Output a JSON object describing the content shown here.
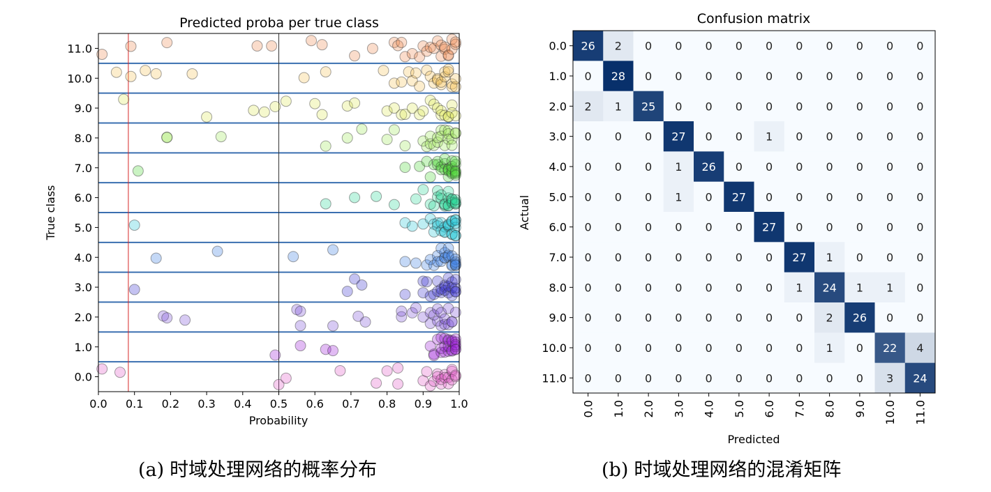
{
  "figure_captions": {
    "a_tag": "(a)",
    "a_text": "时域处理网络的概率分布",
    "b_tag": "(b)",
    "b_text": "时域处理网络的混淆矩阵"
  },
  "chart_data": [
    {
      "type": "scatter",
      "title": "Predicted proba per true class",
      "xlabel": "Probability",
      "ylabel": "True class",
      "xlim": [
        0.0,
        1.0
      ],
      "ylim": [
        -0.5,
        11.5
      ],
      "xticks": [
        "0.0",
        "0.1",
        "0.2",
        "0.3",
        "0.4",
        "0.5",
        "0.6",
        "0.7",
        "0.8",
        "0.9",
        "1.0"
      ],
      "yticks": [
        "0.0",
        "1.0",
        "2.0",
        "3.0",
        "4.0",
        "5.0",
        "6.0",
        "7.0",
        "8.0",
        "9.0",
        "10.0",
        "11.0"
      ],
      "vertical_lines": [
        {
          "x": 0.083,
          "color": "#d62728"
        },
        {
          "x": 0.5,
          "color": "#333333"
        }
      ],
      "class_separators": [
        0.5,
        1.5,
        2.5,
        3.5,
        4.5,
        5.5,
        6.5,
        7.5,
        8.5,
        9.5,
        10.5
      ],
      "grid": false,
      "point_style": "semi-transparent circles colored per class, dark edge",
      "series": [
        {
          "class": 0,
          "color": "#e05ac8",
          "x": [
            0.01,
            0.06,
            0.5,
            0.52,
            0.67,
            0.77,
            0.8,
            0.83,
            0.83,
            0.9,
            0.91,
            0.92,
            0.93,
            0.94,
            0.94,
            0.95,
            0.95,
            0.96,
            0.96,
            0.97,
            0.97,
            0.98,
            0.98,
            0.98,
            0.99,
            0.99
          ]
        },
        {
          "class": 1,
          "color": "#9b1fd6",
          "x": [
            0.49,
            0.56,
            0.63,
            0.65,
            0.92,
            0.93,
            0.93,
            0.94,
            0.95,
            0.95,
            0.95,
            0.96,
            0.96,
            0.96,
            0.97,
            0.97,
            0.97,
            0.97,
            0.98,
            0.98,
            0.98,
            0.98,
            0.99,
            0.99,
            0.99,
            0.99,
            0.99,
            0.99
          ]
        },
        {
          "class": 2,
          "color": "#7a50d8",
          "x": [
            0.18,
            0.19,
            0.24,
            0.55,
            0.56,
            0.56,
            0.65,
            0.72,
            0.74,
            0.84,
            0.84,
            0.87,
            0.88,
            0.9,
            0.92,
            0.92,
            0.93,
            0.94,
            0.94,
            0.95,
            0.95,
            0.96,
            0.96,
            0.97,
            0.97,
            0.98,
            0.98,
            0.99
          ]
        },
        {
          "class": 3,
          "color": "#3a35d0",
          "x": [
            0.1,
            0.69,
            0.71,
            0.73,
            0.85,
            0.9,
            0.9,
            0.91,
            0.92,
            0.93,
            0.94,
            0.94,
            0.95,
            0.95,
            0.96,
            0.96,
            0.96,
            0.97,
            0.97,
            0.97,
            0.98,
            0.98,
            0.98,
            0.99,
            0.99,
            0.99,
            0.99
          ]
        },
        {
          "class": 4,
          "color": "#3d7de0",
          "x": [
            0.16,
            0.33,
            0.54,
            0.65,
            0.85,
            0.88,
            0.91,
            0.92,
            0.93,
            0.94,
            0.94,
            0.95,
            0.95,
            0.96,
            0.96,
            0.96,
            0.97,
            0.97,
            0.97,
            0.98,
            0.98,
            0.98,
            0.99,
            0.99,
            0.99,
            0.99,
            0.99
          ]
        },
        {
          "class": 5,
          "color": "#27c8d8",
          "x": [
            0.1,
            0.85,
            0.87,
            0.9,
            0.92,
            0.93,
            0.93,
            0.94,
            0.94,
            0.95,
            0.95,
            0.96,
            0.96,
            0.96,
            0.97,
            0.97,
            0.97,
            0.98,
            0.98,
            0.98,
            0.98,
            0.99,
            0.99,
            0.99,
            0.99,
            0.99,
            0.99
          ]
        },
        {
          "class": 6,
          "color": "#2ad898",
          "x": [
            0.63,
            0.71,
            0.77,
            0.82,
            0.88,
            0.9,
            0.92,
            0.93,
            0.94,
            0.94,
            0.95,
            0.95,
            0.96,
            0.96,
            0.96,
            0.97,
            0.97,
            0.97,
            0.97,
            0.98,
            0.98,
            0.98,
            0.98,
            0.99,
            0.99,
            0.99,
            0.99
          ]
        },
        {
          "class": 7,
          "color": "#4ed838",
          "x": [
            0.11,
            0.85,
            0.89,
            0.91,
            0.92,
            0.93,
            0.94,
            0.94,
            0.95,
            0.95,
            0.96,
            0.96,
            0.96,
            0.97,
            0.97,
            0.97,
            0.97,
            0.98,
            0.98,
            0.98,
            0.98,
            0.98,
            0.99,
            0.99,
            0.99,
            0.99,
            0.99,
            0.99
          ]
        },
        {
          "class": 8,
          "color": "#9ee858",
          "x": [
            0.19,
            0.19,
            0.34,
            0.63,
            0.69,
            0.73,
            0.8,
            0.82,
            0.85,
            0.9,
            0.91,
            0.92,
            0.92,
            0.93,
            0.94,
            0.94,
            0.95,
            0.95,
            0.96,
            0.96,
            0.97,
            0.97,
            0.97,
            0.98,
            0.98,
            0.99,
            0.99
          ]
        },
        {
          "class": 9,
          "color": "#dfe85a",
          "x": [
            0.07,
            0.3,
            0.43,
            0.46,
            0.49,
            0.52,
            0.6,
            0.62,
            0.69,
            0.71,
            0.8,
            0.82,
            0.84,
            0.85,
            0.87,
            0.89,
            0.9,
            0.92,
            0.93,
            0.94,
            0.95,
            0.95,
            0.96,
            0.97,
            0.97,
            0.98,
            0.98,
            0.99
          ]
        },
        {
          "class": 10,
          "color": "#f5c35a",
          "x": [
            0.05,
            0.09,
            0.13,
            0.16,
            0.26,
            0.57,
            0.63,
            0.79,
            0.82,
            0.84,
            0.86,
            0.87,
            0.88,
            0.89,
            0.91,
            0.92,
            0.93,
            0.94,
            0.94,
            0.95,
            0.95,
            0.96,
            0.96,
            0.97,
            0.97,
            0.98,
            0.98,
            0.99,
            0.99
          ]
        },
        {
          "class": 11,
          "color": "#ee8a52",
          "x": [
            0.01,
            0.09,
            0.19,
            0.44,
            0.48,
            0.59,
            0.62,
            0.71,
            0.76,
            0.82,
            0.83,
            0.84,
            0.85,
            0.87,
            0.89,
            0.9,
            0.91,
            0.92,
            0.93,
            0.94,
            0.95,
            0.95,
            0.96,
            0.96,
            0.97,
            0.97,
            0.98,
            0.98,
            0.99,
            0.99
          ]
        }
      ]
    },
    {
      "type": "heatmap",
      "title": "Confusion matrix",
      "xlabel": "Predicted",
      "ylabel": "Actual",
      "labels": [
        "0.0",
        "1.0",
        "2.0",
        "3.0",
        "4.0",
        "5.0",
        "6.0",
        "7.0",
        "8.0",
        "9.0",
        "10.0",
        "11.0"
      ],
      "colormap": "Blues",
      "vmax": 28,
      "matrix": [
        [
          26,
          2,
          0,
          0,
          0,
          0,
          0,
          0,
          0,
          0,
          0,
          0
        ],
        [
          0,
          28,
          0,
          0,
          0,
          0,
          0,
          0,
          0,
          0,
          0,
          0
        ],
        [
          2,
          1,
          25,
          0,
          0,
          0,
          0,
          0,
          0,
          0,
          0,
          0
        ],
        [
          0,
          0,
          0,
          27,
          0,
          0,
          1,
          0,
          0,
          0,
          0,
          0
        ],
        [
          0,
          0,
          0,
          1,
          26,
          0,
          0,
          0,
          0,
          0,
          0,
          0
        ],
        [
          0,
          0,
          0,
          1,
          0,
          27,
          0,
          0,
          0,
          0,
          0,
          0
        ],
        [
          0,
          0,
          0,
          0,
          0,
          0,
          27,
          0,
          0,
          0,
          0,
          0
        ],
        [
          0,
          0,
          0,
          0,
          0,
          0,
          0,
          27,
          1,
          0,
          0,
          0
        ],
        [
          0,
          0,
          0,
          0,
          0,
          0,
          0,
          1,
          24,
          1,
          1,
          0
        ],
        [
          0,
          0,
          0,
          0,
          0,
          0,
          0,
          0,
          2,
          26,
          0,
          0
        ],
        [
          0,
          0,
          0,
          0,
          0,
          0,
          0,
          0,
          1,
          0,
          22,
          4
        ],
        [
          0,
          0,
          0,
          0,
          0,
          0,
          0,
          0,
          0,
          0,
          3,
          24
        ]
      ]
    }
  ]
}
